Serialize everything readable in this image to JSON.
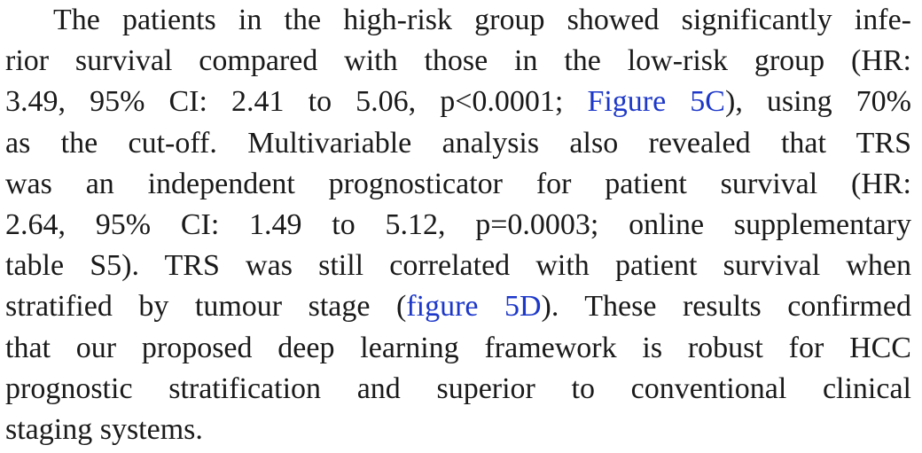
{
  "paragraph": {
    "lines": [
      "The patients in the high-risk group showed significantly infe-",
      "rior survival compared with those in the low-risk group (HR:",
      "3.49, 95% CI: 2.41 to 5.06, p<0.0001; ",
      "as the cut-off. Multivariable analysis also revealed that TRS",
      "was an independent prognosticator for patient survival (HR:",
      "2.64, 95% CI: 1.49 to 5.12, p=0.0003; online supplementary",
      "table S5). TRS was still correlated with patient survival when",
      "stratified by tumour stage (",
      "that our proposed deep learning framework is robust for HCC",
      "prognostic stratification and superior to conventional clinical",
      "staging systems."
    ],
    "line3_link": "Figure 5C",
    "line3_tail": "), using 70%",
    "line8_link": "figure 5D",
    "line8_tail": "). These results confirmed"
  },
  "colors": {
    "text": "#1a1a1a",
    "link": "#1d38c9"
  }
}
